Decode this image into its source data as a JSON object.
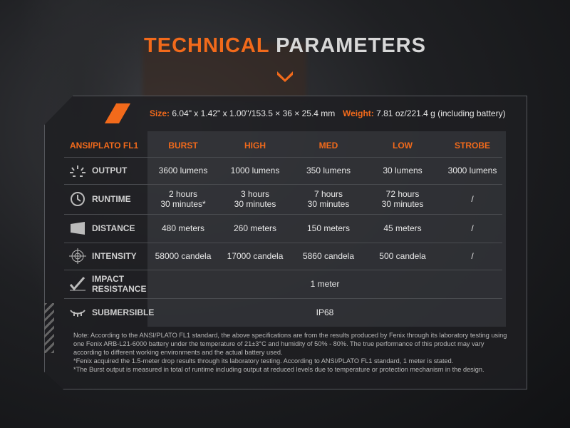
{
  "title": {
    "part1": "TECHNICAL",
    "part2": "PARAMETERS"
  },
  "colors": {
    "accent": "#f26a1b"
  },
  "specs": {
    "size_label": "Size:",
    "size_value": "6.04\" x 1.42\" x 1.00\"/153.5 × 36 × 25.4 mm",
    "weight_label": "Weight:",
    "weight_value": "7.81 oz/221.4 g (including battery)"
  },
  "table": {
    "headers": [
      "ANSI/PLATO FL1",
      "BURST",
      "HIGH",
      "MED",
      "LOW",
      "STROBE"
    ],
    "rows": [
      {
        "icon": "light-rays-icon",
        "label": "OUTPUT",
        "cells": [
          "3600 lumens",
          "1000 lumens",
          "350 lumens",
          "30 lumens",
          "3000 lumens"
        ]
      },
      {
        "icon": "clock-icon",
        "label": "RUNTIME",
        "cells": [
          "2 hours\n30 minutes*",
          "3 hours\n30 minutes",
          "7 hours\n30 minutes",
          "72 hours\n30 minutes",
          "/"
        ]
      },
      {
        "icon": "beam-distance-icon",
        "label": "DISTANCE",
        "cells": [
          "480 meters",
          "260 meters",
          "150 meters",
          "45 meters",
          "/"
        ]
      },
      {
        "icon": "target-icon",
        "label": "INTENSITY",
        "cells": [
          "58000 candela",
          "17000 candela",
          "5860 candela",
          "500 candela",
          "/"
        ]
      },
      {
        "icon": "impact-icon",
        "label": "IMPACT\nRESISTANCE",
        "span": "1 meter"
      },
      {
        "icon": "submersible-icon",
        "label": "SUBMERSIBLE",
        "span": "IP68"
      }
    ]
  },
  "notes": [
    "Note: According to the ANSI/PLATO FL1 standard, the above specifications are from the results produced by Fenix through its laboratory testing using one Fenix ARB-L21-6000 battery under the temperature of 21±3°C and humidity of 50% - 80%. The true performance of this product may vary according to different working environments and the actual battery used.",
    "*Fenix acquired the 1.5-meter drop results through its laboratory testing. According to ANSI/PLATO FL1 standard, 1 meter is stated.",
    "*The Burst output is measured in total of runtime including output at reduced levels due to temperature or protection mechanism in the design."
  ]
}
